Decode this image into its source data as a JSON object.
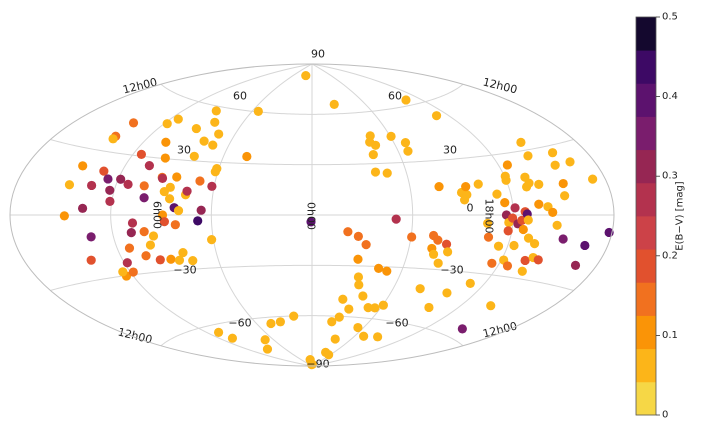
{
  "chart_data": {
    "type": "scatter",
    "projection": "aitoff",
    "grid": true,
    "lat_ticks": [
      {
        "lat": 90,
        "label": "90"
      },
      {
        "lat": 60,
        "label": "60"
      },
      {
        "lat": 30,
        "label": "30"
      },
      {
        "lat": 0,
        "label": "0"
      },
      {
        "lat": -30,
        "label": "−30"
      },
      {
        "lat": -60,
        "label": "−60"
      },
      {
        "lat": -90,
        "label": "−90"
      }
    ],
    "lon_ticks": [
      "12h00",
      "18h00",
      "0h00",
      "6h00"
    ],
    "colorbar": {
      "label": "E(B−V) [mag]",
      "min": 0,
      "max": 0.5,
      "levels": 12,
      "ticks": [
        "0",
        "0.1",
        "0.2",
        "0.3",
        "0.4",
        "0.5"
      ],
      "colors": [
        "#f6d746",
        "#fcb519",
        "#fa9407",
        "#f1711f",
        "#e1512e",
        "#cc4248",
        "#b3324e",
        "#962653",
        "#7a1d6d",
        "#5c126e",
        "#3d0965",
        "#14082e"
      ]
    },
    "points": [
      {
        "x": -148.1,
        "y": 13.5,
        "c": 0.05
      },
      {
        "x": -146.1,
        "y": 22.3,
        "c": 0.1
      },
      {
        "x": -147.6,
        "y": -0.4,
        "c": 0.1
      },
      {
        "x": -142.1,
        "y": 37.2,
        "c": 0.15
      },
      {
        "x": -141.8,
        "y": 44.3,
        "c": 0.15
      },
      {
        "x": -141.9,
        "y": 35.9,
        "c": 0.05
      },
      {
        "x": -139.4,
        "y": -21.0,
        "c": 0.2
      },
      {
        "x": -134.6,
        "y": 13.9,
        "c": 0.25
      },
      {
        "x": -136.9,
        "y": 3.1,
        "c": 0.3
      },
      {
        "x": -131.2,
        "y": 21.0,
        "c": 0.2
      },
      {
        "x": -133.4,
        "y": -10.3,
        "c": 0.35
      },
      {
        "x": -126.3,
        "y": 17.5,
        "c": 0.35
      },
      {
        "x": -124.3,
        "y": -30.2,
        "c": 0.1
      },
      {
        "x": -124.6,
        "y": -28.0,
        "c": 0.05
      },
      {
        "x": -122.7,
        "y": 12.1,
        "c": 0.3
      },
      {
        "x": -121.1,
        "y": 6.7,
        "c": 0.25
      },
      {
        "x": -118.1,
        "y": -23.9,
        "c": 0.25
      },
      {
        "x": -117.8,
        "y": 47.2,
        "c": 0.05
      },
      {
        "x": -118.1,
        "y": -28.7,
        "c": 0.15
      },
      {
        "x": -118.5,
        "y": 17.8,
        "c": 0.3
      },
      {
        "x": -114.6,
        "y": 30.9,
        "c": 0.2
      },
      {
        "x": -114.2,
        "y": 50.3,
        "c": 0.05
      },
      {
        "x": -112.8,
        "y": 15.5,
        "c": 0.25
      },
      {
        "x": -112.5,
        "y": -16.8,
        "c": 0.15
      },
      {
        "x": -109.3,
        "y": -64.0,
        "c": 0.05
      },
      {
        "x": -108.7,
        "y": -9.0,
        "c": 0.3
      },
      {
        "x": -107.2,
        "y": -4.1,
        "c": 0.25
      },
      {
        "x": -106.9,
        "y": -68.1,
        "c": 0.05
      },
      {
        "x": -105.0,
        "y": 38.3,
        "c": 0.1
      },
      {
        "x": -104.9,
        "y": 25.7,
        "c": 0.25
      },
      {
        "x": -104.3,
        "y": -21.2,
        "c": 0.15
      },
      {
        "x": -102.7,
        "y": 15.2,
        "c": 0.15
      },
      {
        "x": -100.9,
        "y": -8.7,
        "c": 0.15
      },
      {
        "x": -101.0,
        "y": 9.0,
        "c": 0.35
      },
      {
        "x": -99.1,
        "y": -15.8,
        "c": 0.05
      },
      {
        "x": -97.6,
        "y": 30.3,
        "c": 0.1
      },
      {
        "x": -96.6,
        "y": -23.8,
        "c": 0.2
      },
      {
        "x": -95.8,
        "y": -11.1,
        "c": 0.05
      },
      {
        "x": -93.5,
        "y": 20.1,
        "c": 0.15
      },
      {
        "x": -92.8,
        "y": 57.6,
        "c": 0.05
      },
      {
        "x": -93.1,
        "y": 19.6,
        "c": 0.25
      },
      {
        "x": -92.5,
        "y": 47.2,
        "c": 0.05
      },
      {
        "x": -92.0,
        "y": -77.0,
        "c": 0.05
      },
      {
        "x": -89.8,
        "y": -23.9,
        "c": 0.1
      },
      {
        "x": -89.1,
        "y": 0.0,
        "c": 0.1
      },
      {
        "x": -89.6,
        "y": 12.6,
        "c": 0.05
      },
      {
        "x": -88.1,
        "y": -3.6,
        "c": 0.2
      },
      {
        "x": -86.6,
        "y": 15.0,
        "c": 0.05
      },
      {
        "x": -85.6,
        "y": 8.8,
        "c": 0.05
      },
      {
        "x": -84.7,
        "y": -24.7,
        "c": 0.05
      },
      {
        "x": -83.2,
        "y": 51.7,
        "c": 0.05
      },
      {
        "x": -84.6,
        "y": 20.7,
        "c": 0.1
      },
      {
        "x": -82.3,
        "y": 4.0,
        "c": 0.4
      },
      {
        "x": -81.7,
        "y": -5.3,
        "c": 0.15
      },
      {
        "x": -80.7,
        "y": -20.7,
        "c": 0.05
      },
      {
        "x": -79.4,
        "y": 32.5,
        "c": 0.05
      },
      {
        "x": -79.2,
        "y": 41.1,
        "c": 0.05
      },
      {
        "x": -79.6,
        "y": 2.4,
        "c": 0.05
      },
      {
        "x": -76.4,
        "y": 11.2,
        "c": 0.05
      },
      {
        "x": -75.9,
        "y": 13.2,
        "c": 0.25
      },
      {
        "x": -76.4,
        "y": -25.3,
        "c": 0.05
      },
      {
        "x": -72.4,
        "y": 45.7,
        "c": 0.05
      },
      {
        "x": -71.3,
        "y": 39.4,
        "c": 0.05
      },
      {
        "x": -69.5,
        "y": 19.1,
        "c": 0.15
      },
      {
        "x": -71.6,
        "y": -72.2,
        "c": 0.05
      },
      {
        "x": -68.2,
        "y": -3.3,
        "c": 0.45
      },
      {
        "x": -66.1,
        "y": 2.7,
        "c": 0.3
      },
      {
        "x": -61.6,
        "y": 24.6,
        "c": 0.05
      },
      {
        "x": -61.3,
        "y": 26.4,
        "c": 0.05
      },
      {
        "x": -61.4,
        "y": 16.3,
        "c": 0.25
      },
      {
        "x": -61.1,
        "y": -14.0,
        "c": 0.05
      },
      {
        "x": -54.0,
        "y": 60.3,
        "c": 0.05
      },
      {
        "x": -44.3,
        "y": 34.1,
        "c": 0.1
      },
      {
        "x": -45.0,
        "y": -63.7,
        "c": 0.05
      },
      {
        "x": -33.9,
        "y": -63.1,
        "c": 0.05
      },
      {
        "x": -20.9,
        "y": 83.0,
        "c": 0.05
      },
      {
        "x": -18.1,
        "y": -60.1,
        "c": 0.05
      },
      {
        "x": -11.0,
        "y": -86.2,
        "c": 0.05
      },
      {
        "x": -8.1,
        "y": -89.2,
        "c": 0.05
      },
      {
        "x": -0.6,
        "y": -4.1,
        "c": 0.4
      },
      {
        "x": 7.2,
        "y": -89.0,
        "c": 0.05
      },
      {
        "x": 21.6,
        "y": -9.9,
        "c": 0.15
      },
      {
        "x": 21.3,
        "y": -63.4,
        "c": 0.05
      },
      {
        "x": 25.6,
        "y": 65.6,
        "c": 0.05
      },
      {
        "x": 25.1,
        "y": -49.9,
        "c": 0.05
      },
      {
        "x": 28.1,
        "y": -12.6,
        "c": 0.15
      },
      {
        "x": 27.3,
        "y": -60.5,
        "c": 0.05
      },
      {
        "x": 29.5,
        "y": -26.1,
        "c": 0.1
      },
      {
        "x": 32.2,
        "y": -36.5,
        "c": 0.05
      },
      {
        "x": 33.3,
        "y": -17.4,
        "c": 0.15
      },
      {
        "x": 33.1,
        "y": -55.5,
        "c": 0.05
      },
      {
        "x": 34.0,
        "y": -41.1,
        "c": 0.05
      },
      {
        "x": 36.6,
        "y": -73.4,
        "c": 0.05
      },
      {
        "x": 38.7,
        "y": -81.5,
        "c": 0.05
      },
      {
        "x": 40.5,
        "y": 25.1,
        "c": 0.05
      },
      {
        "x": 42.1,
        "y": 35.3,
        "c": 0.05
      },
      {
        "x": 40.1,
        "y": -47.5,
        "c": 0.05
      },
      {
        "x": 44.2,
        "y": -31.1,
        "c": 0.1
      },
      {
        "x": 42.7,
        "y": 42.6,
        "c": 0.05
      },
      {
        "x": 45.1,
        "y": 46.2,
        "c": 0.05
      },
      {
        "x": 46.0,
        "y": 40.6,
        "c": 0.05
      },
      {
        "x": 47.8,
        "y": 24.3,
        "c": 0.05
      },
      {
        "x": 50.2,
        "y": -2.4,
        "c": 0.25
      },
      {
        "x": 49.3,
        "y": -54.0,
        "c": 0.05
      },
      {
        "x": 50.2,
        "y": -32.5,
        "c": 0.1
      },
      {
        "x": 53.7,
        "y": -65.7,
        "c": 0.05
      },
      {
        "x": 54.6,
        "y": -82.6,
        "c": 0.05
      },
      {
        "x": 55.1,
        "y": -53.8,
        "c": 0.05
      },
      {
        "x": 60.4,
        "y": -12.5,
        "c": 0.15
      },
      {
        "x": 60.6,
        "y": -51.9,
        "c": 0.05
      },
      {
        "x": 60.6,
        "y": 45.1,
        "c": 0.05
      },
      {
        "x": 66.7,
        "y": 36.2,
        "c": 0.05
      },
      {
        "x": 68.3,
        "y": 41.0,
        "c": 0.05
      },
      {
        "x": 71.6,
        "y": -70.0,
        "c": 0.05
      },
      {
        "x": 73.5,
        "y": -11.4,
        "c": 0.15
      },
      {
        "x": 74.2,
        "y": -18.6,
        "c": 0.1
      },
      {
        "x": 76.4,
        "y": -21.8,
        "c": 0.05
      },
      {
        "x": 76.6,
        "y": -13.9,
        "c": 0.15
      },
      {
        "x": 77.8,
        "y": 15.7,
        "c": 0.1
      },
      {
        "x": 79.3,
        "y": -41.0,
        "c": 0.05
      },
      {
        "x": 81.5,
        "y": -26.5,
        "c": 0.05
      },
      {
        "x": 82.5,
        "y": -16.0,
        "c": 0.2
      },
      {
        "x": 84.6,
        "y": -20.1,
        "c": 0.05
      },
      {
        "x": 89.1,
        "y": -69.0,
        "c": 0.05
      },
      {
        "x": 90.6,
        "y": 12.1,
        "c": 0.05
      },
      {
        "x": 91.6,
        "y": 8.1,
        "c": 0.05
      },
      {
        "x": 93.5,
        "y": 10.8,
        "c": 0.05
      },
      {
        "x": 94.0,
        "y": 15.1,
        "c": 0.1
      },
      {
        "x": 98.3,
        "y": -50.1,
        "c": 0.05
      },
      {
        "x": 100.5,
        "y": -41.6,
        "c": 0.05
      },
      {
        "x": 102.1,
        "y": 16.1,
        "c": 0.05
      },
      {
        "x": 104.9,
        "y": -4.3,
        "c": 0.05
      },
      {
        "x": 105.9,
        "y": 62.9,
        "c": 0.05
      },
      {
        "x": 106.8,
        "y": -11.4,
        "c": 0.15
      },
      {
        "x": 110.8,
        "y": 52.7,
        "c": 0.05
      },
      {
        "x": 111.7,
        "y": 10.6,
        "c": 0.05
      },
      {
        "x": 110.6,
        "y": -35.4,
        "c": 0.05
      },
      {
        "x": 115.4,
        "y": 6.2,
        "c": 0.1
      },
      {
        "x": 114.5,
        "y": -15.7,
        "c": 0.05
      },
      {
        "x": 115.9,
        "y": 0.0,
        "c": 0.3
      },
      {
        "x": 115.3,
        "y": -24.4,
        "c": 0.15
      },
      {
        "x": 117.5,
        "y": -3.7,
        "c": 0.05
      },
      {
        "x": 117.8,
        "y": -7.9,
        "c": 0.2
      },
      {
        "x": 119.6,
        "y": -1.5,
        "c": 0.2
      },
      {
        "x": 119.9,
        "y": 17.2,
        "c": 0.05
      },
      {
        "x": 120.5,
        "y": 19.2,
        "c": 0.05
      },
      {
        "x": 121.2,
        "y": 3.5,
        "c": 0.25
      },
      {
        "x": 121.5,
        "y": -22.3,
        "c": 0.05
      },
      {
        "x": 123.0,
        "y": -4.3,
        "c": 0.3
      },
      {
        "x": 123.7,
        "y": -14.9,
        "c": 0.05
      },
      {
        "x": 125.6,
        "y": 24.5,
        "c": 0.1
      },
      {
        "x": 125.2,
        "y": -2.6,
        "c": 0.2
      },
      {
        "x": 126.7,
        "y": -7.0,
        "c": 0.1
      },
      {
        "x": 126.0,
        "y": -24.9,
        "c": 0.15
      },
      {
        "x": 127.1,
        "y": 1.6,
        "c": 0.2
      },
      {
        "x": 128.3,
        "y": 0.5,
        "c": 0.4
      },
      {
        "x": 129.0,
        "y": -2.4,
        "c": 0.05
      },
      {
        "x": 131.0,
        "y": -11.0,
        "c": 0.05
      },
      {
        "x": 130.8,
        "y": 13.4,
        "c": 0.05
      },
      {
        "x": 132.2,
        "y": 18.0,
        "c": 0.05
      },
      {
        "x": 133.1,
        "y": 15.1,
        "c": 0.05
      },
      {
        "x": 135.7,
        "y": -13.4,
        "c": 0.05
      },
      {
        "x": 134.8,
        "y": -21.5,
        "c": 0.2
      },
      {
        "x": 135.6,
        "y": 5.0,
        "c": 0.1
      },
      {
        "x": 137.5,
        "y": -26.5,
        "c": 0.05
      },
      {
        "x": 138.7,
        "y": -19.8,
        "c": 0.05
      },
      {
        "x": 138.7,
        "y": 14.2,
        "c": 0.05
      },
      {
        "x": 140.6,
        "y": -43.7,
        "c": 0.05
      },
      {
        "x": 140.9,
        "y": 3.8,
        "c": 0.05
      },
      {
        "x": 142.4,
        "y": 27.4,
        "c": 0.05
      },
      {
        "x": 142.6,
        "y": -20.6,
        "c": 0.2
      },
      {
        "x": 143.5,
        "y": 1.2,
        "c": 0.1
      },
      {
        "x": 145.8,
        "y": 33.6,
        "c": 0.05
      },
      {
        "x": 146.5,
        "y": -4.6,
        "c": 0.05
      },
      {
        "x": 149.1,
        "y": -55.6,
        "c": 0.35
      },
      {
        "x": 151.9,
        "y": -10.5,
        "c": 0.35
      },
      {
        "x": 152.0,
        "y": 8.4,
        "c": 0.05
      },
      {
        "x": 153.6,
        "y": 13.7,
        "c": 0.1
      },
      {
        "x": 154.8,
        "y": 21.8,
        "c": 0.05
      },
      {
        "x": 159.2,
        "y": 27.0,
        "c": 0.05
      },
      {
        "x": 165.2,
        "y": 22.2,
        "c": 0.05
      },
      {
        "x": 166.3,
        "y": -12.5,
        "c": 0.4
      },
      {
        "x": 167.3,
        "y": -20.8,
        "c": 0.3
      },
      {
        "x": 172.4,
        "y": 14.3,
        "c": 0.05
      },
      {
        "x": 178.3,
        "y": -6.7,
        "c": 0.4
      }
    ]
  }
}
